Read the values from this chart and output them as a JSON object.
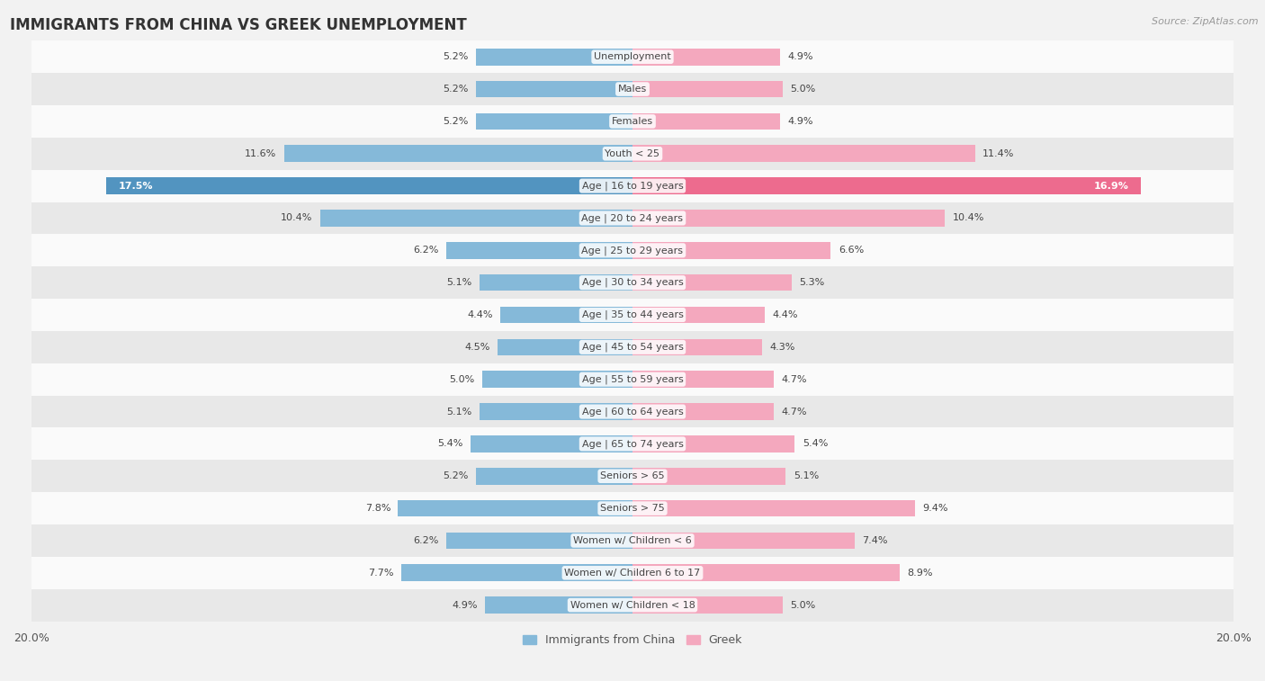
{
  "title": "IMMIGRANTS FROM CHINA VS GREEK UNEMPLOYMENT",
  "source": "Source: ZipAtlas.com",
  "categories": [
    "Unemployment",
    "Males",
    "Females",
    "Youth < 25",
    "Age | 16 to 19 years",
    "Age | 20 to 24 years",
    "Age | 25 to 29 years",
    "Age | 30 to 34 years",
    "Age | 35 to 44 years",
    "Age | 45 to 54 years",
    "Age | 55 to 59 years",
    "Age | 60 to 64 years",
    "Age | 65 to 74 years",
    "Seniors > 65",
    "Seniors > 75",
    "Women w/ Children < 6",
    "Women w/ Children 6 to 17",
    "Women w/ Children < 18"
  ],
  "china_values": [
    5.2,
    5.2,
    5.2,
    11.6,
    17.5,
    10.4,
    6.2,
    5.1,
    4.4,
    4.5,
    5.0,
    5.1,
    5.4,
    5.2,
    7.8,
    6.2,
    7.7,
    4.9
  ],
  "greek_values": [
    4.9,
    5.0,
    4.9,
    11.4,
    16.9,
    10.4,
    6.6,
    5.3,
    4.4,
    4.3,
    4.7,
    4.7,
    5.4,
    5.1,
    9.4,
    7.4,
    8.9,
    5.0
  ],
  "china_color": "#85b9d9",
  "china_highlight_color": "#5294c0",
  "greek_color": "#f4a8be",
  "greek_highlight_color": "#ed6b8e",
  "max_value": 20.0,
  "background_color": "#f2f2f2",
  "row_bg_light": "#fafafa",
  "row_bg_dark": "#e8e8e8",
  "legend_china": "Immigrants from China",
  "legend_greek": "Greek",
  "label_fontsize": 8.0,
  "cat_fontsize": 8.0
}
